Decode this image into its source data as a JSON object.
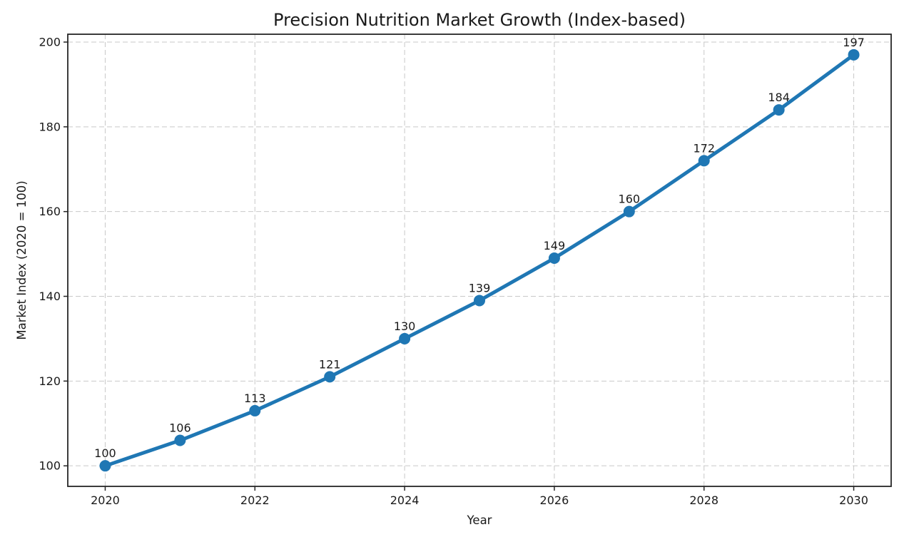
{
  "figure": {
    "title": "Precision Nutrition Market Growth (Index-based)",
    "xlabel": "Year",
    "ylabel": "Market Index (2020 = 100)"
  },
  "chart_data": {
    "type": "line",
    "title": "Precision Nutrition Market Growth (Index-based)",
    "xlabel": "Year",
    "ylabel": "Market Index (2020 = 100)",
    "x": [
      2020,
      2021,
      2022,
      2023,
      2024,
      2025,
      2026,
      2027,
      2028,
      2029,
      2030
    ],
    "series": [
      {
        "name": "Market Index",
        "values": [
          100,
          106,
          113,
          121,
          130,
          139,
          149,
          160,
          172,
          184,
          197
        ]
      }
    ],
    "data_labels": [
      "100",
      "106",
      "113",
      "121",
      "130",
      "139",
      "149",
      "160",
      "172",
      "184",
      "197"
    ],
    "xticks": [
      2020,
      2022,
      2024,
      2026,
      2028,
      2030
    ],
    "yticks": [
      100,
      120,
      140,
      160,
      180,
      200
    ],
    "xlim": [
      2019.5,
      2030.5
    ],
    "ylim": [
      95.15,
      201.85
    ],
    "grid": true,
    "grid_style": "dashed",
    "legend_position": "none",
    "colors": {
      "line": "#1f77b4",
      "marker": "#1f77b4",
      "grid": "#c9c9c9",
      "spine": "#262626",
      "text": "#1a1a1a",
      "background": "#ffffff"
    }
  }
}
